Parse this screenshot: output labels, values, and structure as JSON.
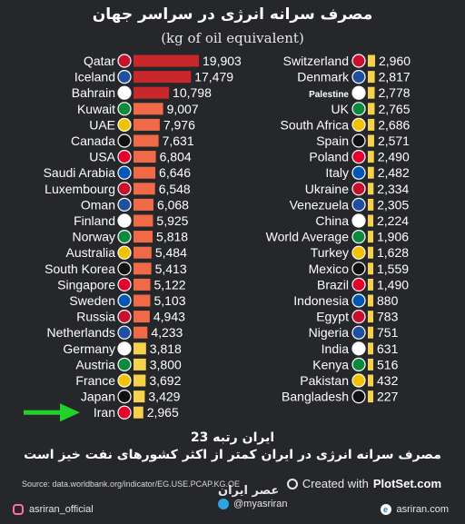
{
  "header": {
    "title": "مصرف سرانه انرژی در سراسر جهان",
    "subtitle": "(kg of oil equivalent)"
  },
  "chart_data": {
    "type": "bar",
    "orientation": "horizontal",
    "unit": "kg of oil equivalent",
    "colors": {
      "high": "#c8282b",
      "mid": "#f16a47",
      "low": "#f6d24c"
    },
    "left_column": [
      {
        "country": "Qatar",
        "value": 19903
      },
      {
        "country": "Iceland",
        "value": 17479
      },
      {
        "country": "Bahrain",
        "value": 10798
      },
      {
        "country": "Kuwait",
        "value": 9007
      },
      {
        "country": "UAE",
        "value": 7976
      },
      {
        "country": "Canada",
        "value": 7631
      },
      {
        "country": "USA",
        "value": 6804
      },
      {
        "country": "Saudi Arabia",
        "value": 6646
      },
      {
        "country": "Luxembourg",
        "value": 6548
      },
      {
        "country": "Oman",
        "value": 6068
      },
      {
        "country": "Finland",
        "value": 5925
      },
      {
        "country": "Norway",
        "value": 5818
      },
      {
        "country": "Australia",
        "value": 5484
      },
      {
        "country": "South Korea",
        "value": 5413
      },
      {
        "country": "Singapore",
        "value": 5122
      },
      {
        "country": "Sweden",
        "value": 5103
      },
      {
        "country": "Russia",
        "value": 4943
      },
      {
        "country": "Netherlands",
        "value": 4233
      },
      {
        "country": "Germany",
        "value": 3818
      },
      {
        "country": "Austria",
        "value": 3800
      },
      {
        "country": "France",
        "value": 3692
      },
      {
        "country": "Japan",
        "value": 3429
      },
      {
        "country": "Iran",
        "value": 2965,
        "highlight": true
      }
    ],
    "right_column": [
      {
        "country": "Switzerland",
        "value": 2960
      },
      {
        "country": "Denmark",
        "value": 2817
      },
      {
        "country": "Palestine",
        "value": 2778
      },
      {
        "country": "UK",
        "value": 2765
      },
      {
        "country": "South Africa",
        "value": 2686
      },
      {
        "country": "Spain",
        "value": 2571
      },
      {
        "country": "Poland",
        "value": 2490
      },
      {
        "country": "Italy",
        "value": 2482
      },
      {
        "country": "Ukraine",
        "value": 2334
      },
      {
        "country": "Venezuela",
        "value": 2305
      },
      {
        "country": "China",
        "value": 2224
      },
      {
        "country": "World Average",
        "value": 1906
      },
      {
        "country": "Turkey",
        "value": 1628
      },
      {
        "country": "Mexico",
        "value": 1559
      },
      {
        "country": "Brazil",
        "value": 1490
      },
      {
        "country": "Indonesia",
        "value": 880
      },
      {
        "country": "Egypt",
        "value": 783
      },
      {
        "country": "Nigeria",
        "value": 751
      },
      {
        "country": "India",
        "value": 631
      },
      {
        "country": "Kenya",
        "value": 516
      },
      {
        "country": "Pakistan",
        "value": 432
      },
      {
        "country": "Bangladesh",
        "value": 227
      }
    ],
    "value_labels_left": [
      "19,903",
      "17,479",
      "10,798",
      "9,007",
      "7,976",
      "7,631",
      "6,804",
      "6,646",
      "6,548",
      "6,068",
      "5,925",
      "5,818",
      "5,484",
      "5,413",
      "5,122",
      "5,103",
      "4,943",
      "4,233",
      "3,818",
      "3,800",
      "3,692",
      "3,429",
      "2,965"
    ],
    "value_labels_right": [
      "2,960",
      "2,817",
      "2,778",
      "2,765",
      "2,686",
      "2,571",
      "2,490",
      "2,482",
      "2,334",
      "2,305",
      "2,224",
      "1,906",
      "1,628",
      "1,559",
      "1,490",
      "880",
      "783",
      "751",
      "631",
      "516",
      "432",
      "227"
    ]
  },
  "footer": {
    "line1": "ایران رتبه 23",
    "line2": "مصرف سرانه انرژی در ایران کمتر از اکثر کشورهای نفت خیز است",
    "source": "Source: data.worldbank.org/indicator/EG.USE.PCAP.KG.OE",
    "plotset_prefix": "Created with",
    "plotset_brand": "PlotSet.com"
  },
  "bottombar": {
    "instagram": "asriran_official",
    "brand": "عصر ایران",
    "telegram": "@myasriran",
    "website": "asriran.com"
  }
}
